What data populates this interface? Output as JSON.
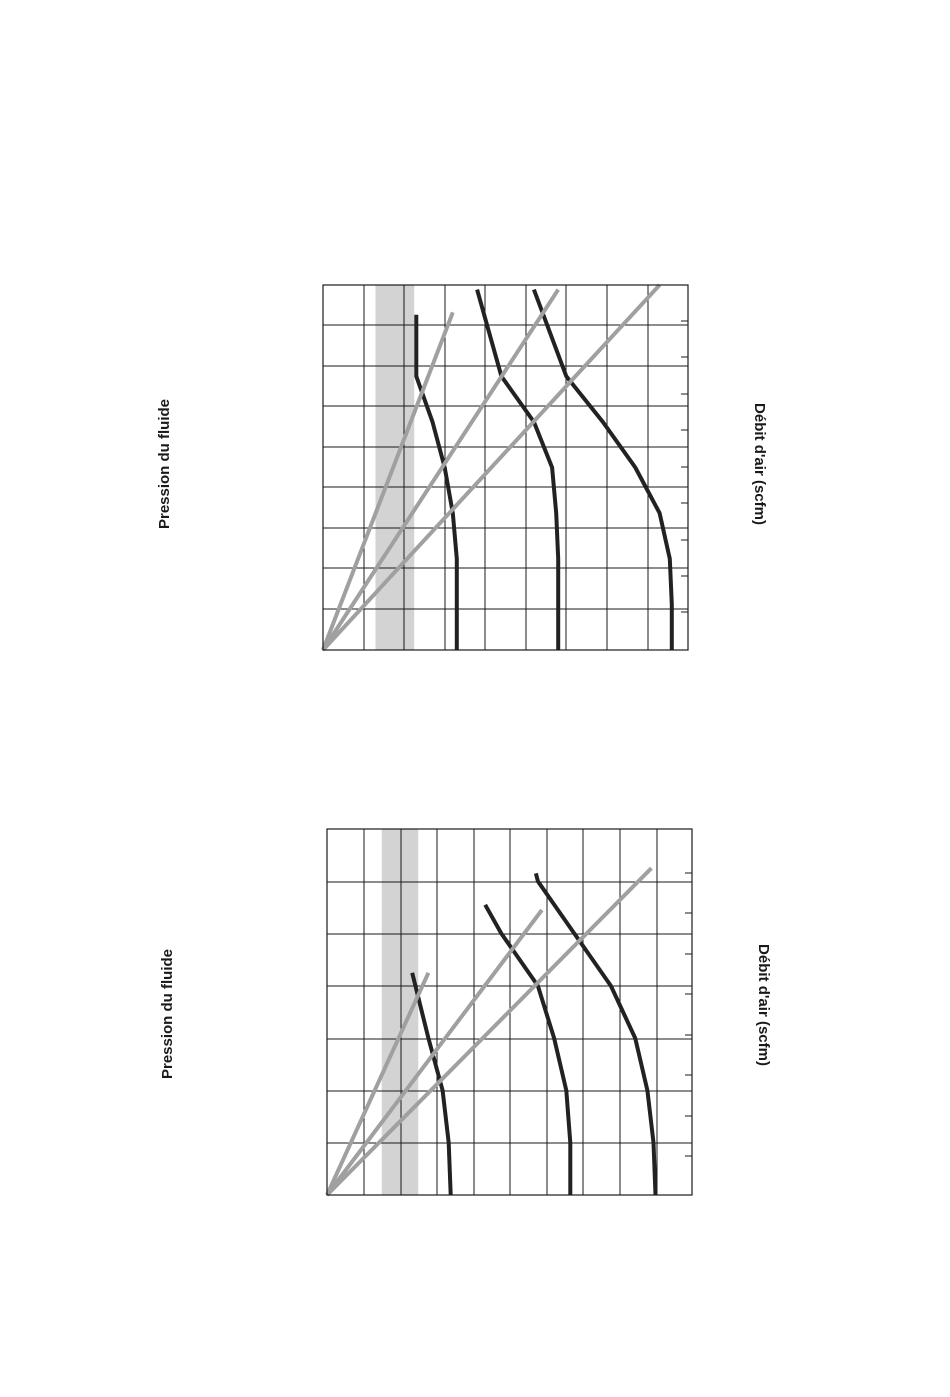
{
  "chart_data": [
    {
      "type": "line",
      "title": "",
      "xlabel": "Pression du fluide",
      "ylabel": "Débit d'air (scfm)",
      "rotated": "90deg-clockwise",
      "x_range": [
        0,
        8
      ],
      "y_range": [
        0,
        9
      ],
      "grid": true,
      "shaded_band_x": [
        1.15,
        2.0
      ],
      "colors": {
        "flow_curve": "#222222",
        "ratio_line": "#a0a0a0",
        "band": "#d3d3d3",
        "grid": "#1a1a1a"
      },
      "series": [
        {
          "kind": "flow_curve",
          "points": [
            [
              0,
              8.6
            ],
            [
              1,
              8.6
            ],
            [
              2,
              8.55
            ],
            [
              3,
              8.3
            ],
            [
              4,
              7.7
            ],
            [
              5,
              6.9
            ],
            [
              6,
              6.0
            ],
            [
              7.9,
              5.2
            ]
          ]
        },
        {
          "kind": "flow_curve",
          "points": [
            [
              0,
              5.8
            ],
            [
              1,
              5.8
            ],
            [
              2,
              5.8
            ],
            [
              3,
              5.75
            ],
            [
              4,
              5.65
            ],
            [
              5,
              5.2
            ],
            [
              6,
              4.4
            ],
            [
              7.9,
              3.8
            ]
          ]
        },
        {
          "kind": "flow_curve",
          "points": [
            [
              0,
              3.3
            ],
            [
              1,
              3.3
            ],
            [
              2,
              3.3
            ],
            [
              3,
              3.2
            ],
            [
              4,
              3.0
            ],
            [
              5,
              2.7
            ],
            [
              6,
              2.3
            ],
            [
              7.35,
              2.3
            ]
          ]
        },
        {
          "kind": "ratio_line",
          "points": [
            [
              0,
              0
            ],
            [
              8.0,
              8.3
            ]
          ]
        },
        {
          "kind": "ratio_line",
          "points": [
            [
              0,
              0
            ],
            [
              7.9,
              5.8
            ]
          ]
        },
        {
          "kind": "ratio_line",
          "points": [
            [
              0,
              0
            ],
            [
              7.4,
              3.2
            ]
          ]
        }
      ]
    },
    {
      "type": "line",
      "title": "",
      "xlabel": "Pression du fluide",
      "ylabel": "Débit d'air (scfm)",
      "rotated": "90deg-clockwise",
      "x_range": [
        0,
        7
      ],
      "y_range": [
        0,
        9
      ],
      "grid": true,
      "shaded_band_x": [
        1.05,
        1.75
      ],
      "colors": {
        "flow_curve": "#222222",
        "ratio_line": "#a0a0a0",
        "band": "#d3d3d3",
        "grid": "#1a1a1a"
      },
      "series": [
        {
          "kind": "flow_curve",
          "points": [
            [
              0,
              8.1
            ],
            [
              1,
              8.05
            ],
            [
              2,
              7.9
            ],
            [
              3,
              7.6
            ],
            [
              4,
              7.0
            ],
            [
              5,
              6.1
            ],
            [
              6,
              5.2
            ],
            [
              6.15,
              5.15
            ]
          ]
        },
        {
          "kind": "flow_curve",
          "points": [
            [
              0,
              6.0
            ],
            [
              1,
              6.0
            ],
            [
              2,
              5.9
            ],
            [
              3,
              5.6
            ],
            [
              4,
              5.2
            ],
            [
              5,
              4.3
            ],
            [
              5.55,
              3.9
            ]
          ]
        },
        {
          "kind": "flow_curve",
          "points": [
            [
              0,
              3.05
            ],
            [
              1,
              3.0
            ],
            [
              2,
              2.85
            ],
            [
              3,
              2.5
            ],
            [
              4.25,
              2.1
            ]
          ]
        },
        {
          "kind": "ratio_line",
          "points": [
            [
              0,
              0
            ],
            [
              6.25,
              8.0
            ]
          ]
        },
        {
          "kind": "ratio_line",
          "points": [
            [
              0,
              0
            ],
            [
              5.45,
              5.3
            ]
          ]
        },
        {
          "kind": "ratio_line",
          "points": [
            [
              0,
              0
            ],
            [
              4.25,
              2.5
            ]
          ]
        }
      ]
    }
  ]
}
